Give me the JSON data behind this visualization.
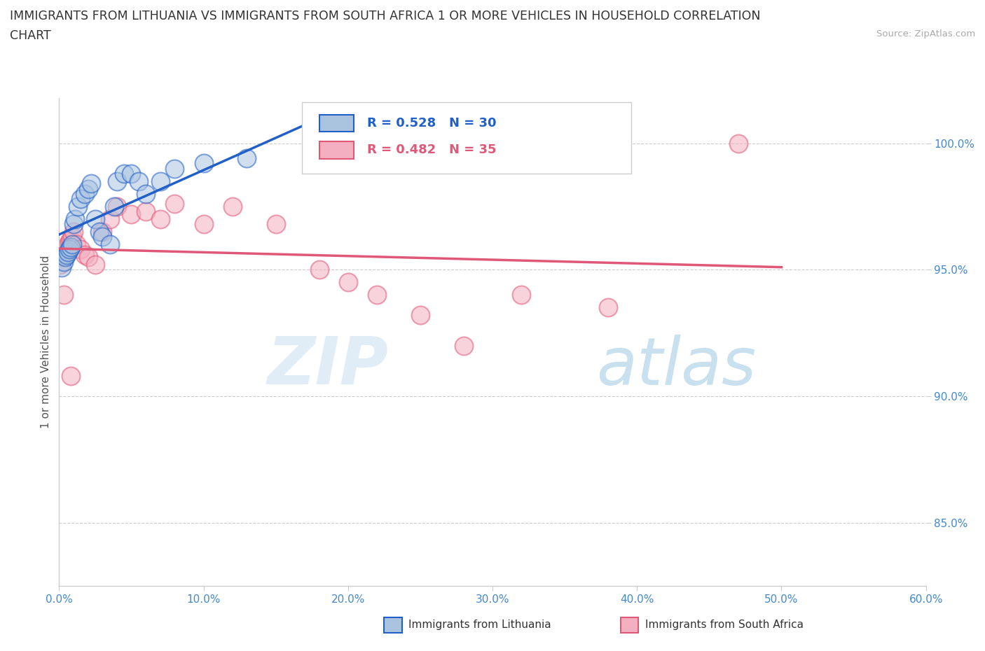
{
  "title_line1": "IMMIGRANTS FROM LITHUANIA VS IMMIGRANTS FROM SOUTH AFRICA 1 OR MORE VEHICLES IN HOUSEHOLD CORRELATION",
  "title_line2": "CHART",
  "source_text": "Source: ZipAtlas.com",
  "xlabel_ticks": [
    "0.0%",
    "10.0%",
    "20.0%",
    "30.0%",
    "40.0%",
    "50.0%",
    "60.0%"
  ],
  "ylabel_ticks": [
    "85.0%",
    "90.0%",
    "95.0%",
    "100.0%"
  ],
  "xmin": 0.0,
  "xmax": 0.6,
  "ymin": 0.825,
  "ymax": 1.018,
  "legend_R1": "R = 0.528",
  "legend_N1": "N = 30",
  "legend_R2": "R = 0.482",
  "legend_N2": "N = 35",
  "color_lithuania": "#aac4e0",
  "color_south_africa": "#f4b0c0",
  "trendline_color_lithuania": "#2060c8",
  "trendline_color_south_africa": "#e05878",
  "watermark_zip": "ZIP",
  "watermark_atlas": "atlas",
  "ylabel": "1 or more Vehicles in Household",
  "legend_label1": "Immigrants from Lithuania",
  "legend_label2": "Immigrants from South Africa",
  "lithuania_x": [
    0.002,
    0.003,
    0.004,
    0.005,
    0.006,
    0.007,
    0.008,
    0.009,
    0.01,
    0.011,
    0.013,
    0.015,
    0.018,
    0.02,
    0.022,
    0.025,
    0.028,
    0.03,
    0.035,
    0.038,
    0.04,
    0.045,
    0.05,
    0.055,
    0.06,
    0.07,
    0.08,
    0.1,
    0.13,
    0.18
  ],
  "lithuania_y": [
    0.951,
    0.953,
    0.955,
    0.956,
    0.957,
    0.958,
    0.959,
    0.96,
    0.968,
    0.97,
    0.975,
    0.978,
    0.98,
    0.982,
    0.984,
    0.97,
    0.965,
    0.963,
    0.96,
    0.975,
    0.985,
    0.988,
    0.988,
    0.985,
    0.98,
    0.985,
    0.99,
    0.992,
    0.994,
    0.996
  ],
  "south_africa_x": [
    0.001,
    0.002,
    0.003,
    0.004,
    0.005,
    0.006,
    0.007,
    0.008,
    0.009,
    0.01,
    0.012,
    0.015,
    0.018,
    0.02,
    0.025,
    0.03,
    0.035,
    0.04,
    0.05,
    0.06,
    0.07,
    0.08,
    0.1,
    0.12,
    0.15,
    0.18,
    0.2,
    0.22,
    0.25,
    0.28,
    0.32,
    0.38,
    0.47,
    0.003,
    0.008
  ],
  "south_africa_y": [
    0.952,
    0.955,
    0.957,
    0.958,
    0.959,
    0.96,
    0.961,
    0.962,
    0.963,
    0.965,
    0.96,
    0.958,
    0.956,
    0.955,
    0.952,
    0.965,
    0.97,
    0.975,
    0.972,
    0.973,
    0.97,
    0.976,
    0.968,
    0.975,
    0.968,
    0.95,
    0.945,
    0.94,
    0.932,
    0.92,
    0.94,
    0.935,
    1.0,
    0.94,
    0.908
  ],
  "trendline_lith_x0": 0.0,
  "trendline_lith_x1": 0.19,
  "trendline_sa_x0": 0.0,
  "trendline_sa_x1": 0.5
}
